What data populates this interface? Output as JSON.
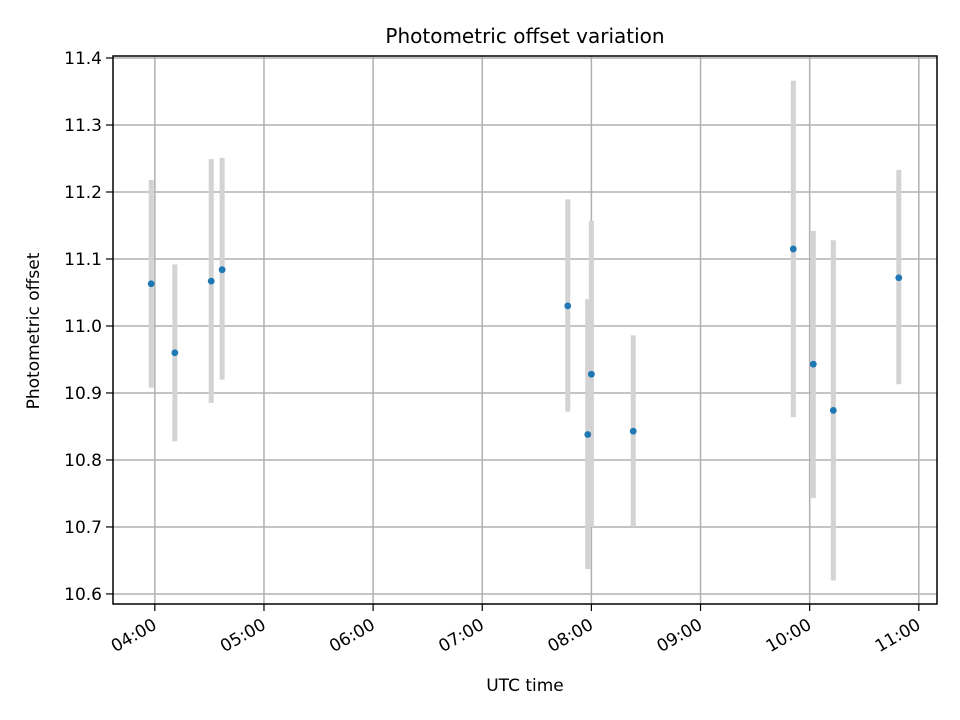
{
  "chart_data": {
    "type": "scatter",
    "title": "Photometric offset variation",
    "xlabel": "UTC time",
    "ylabel": "Photometric offset",
    "x_ticks": [
      "04:00",
      "05:00",
      "06:00",
      "07:00",
      "08:00",
      "09:00",
      "10:00",
      "11:00"
    ],
    "y_ticks": [
      "10.6",
      "10.7",
      "10.8",
      "10.9",
      "11.0",
      "11.1",
      "11.2",
      "11.3",
      "11.4"
    ],
    "xlim": [
      "03:37",
      "11:10"
    ],
    "ylim": [
      10.585,
      11.403
    ],
    "grid": true,
    "marker_color": "#1f77b4",
    "errorbar_color": "#d3d3d3",
    "points": [
      {
        "x": "03:58",
        "y": 11.063,
        "yerr_low": 10.908,
        "yerr_high": 11.218
      },
      {
        "x": "04:11",
        "y": 10.96,
        "yerr_low": 10.828,
        "yerr_high": 11.092
      },
      {
        "x": "04:31",
        "y": 11.067,
        "yerr_low": 10.885,
        "yerr_high": 11.249
      },
      {
        "x": "04:37",
        "y": 11.084,
        "yerr_low": 10.92,
        "yerr_high": 11.251
      },
      {
        "x": "07:47",
        "y": 11.03,
        "yerr_low": 10.872,
        "yerr_high": 11.189
      },
      {
        "x": "07:58",
        "y": 10.838,
        "yerr_low": 10.637,
        "yerr_high": 11.04
      },
      {
        "x": "08:00",
        "y": 10.928,
        "yerr_low": 10.7,
        "yerr_high": 11.157
      },
      {
        "x": "08:23",
        "y": 10.843,
        "yerr_low": 10.7,
        "yerr_high": 10.986
      },
      {
        "x": "09:51",
        "y": 11.115,
        "yerr_low": 10.864,
        "yerr_high": 11.366
      },
      {
        "x": "10:02",
        "y": 10.943,
        "yerr_low": 10.743,
        "yerr_high": 11.142
      },
      {
        "x": "10:13",
        "y": 10.874,
        "yerr_low": 10.62,
        "yerr_high": 11.128
      },
      {
        "x": "10:49",
        "y": 11.072,
        "yerr_low": 10.913,
        "yerr_high": 11.233
      }
    ]
  }
}
